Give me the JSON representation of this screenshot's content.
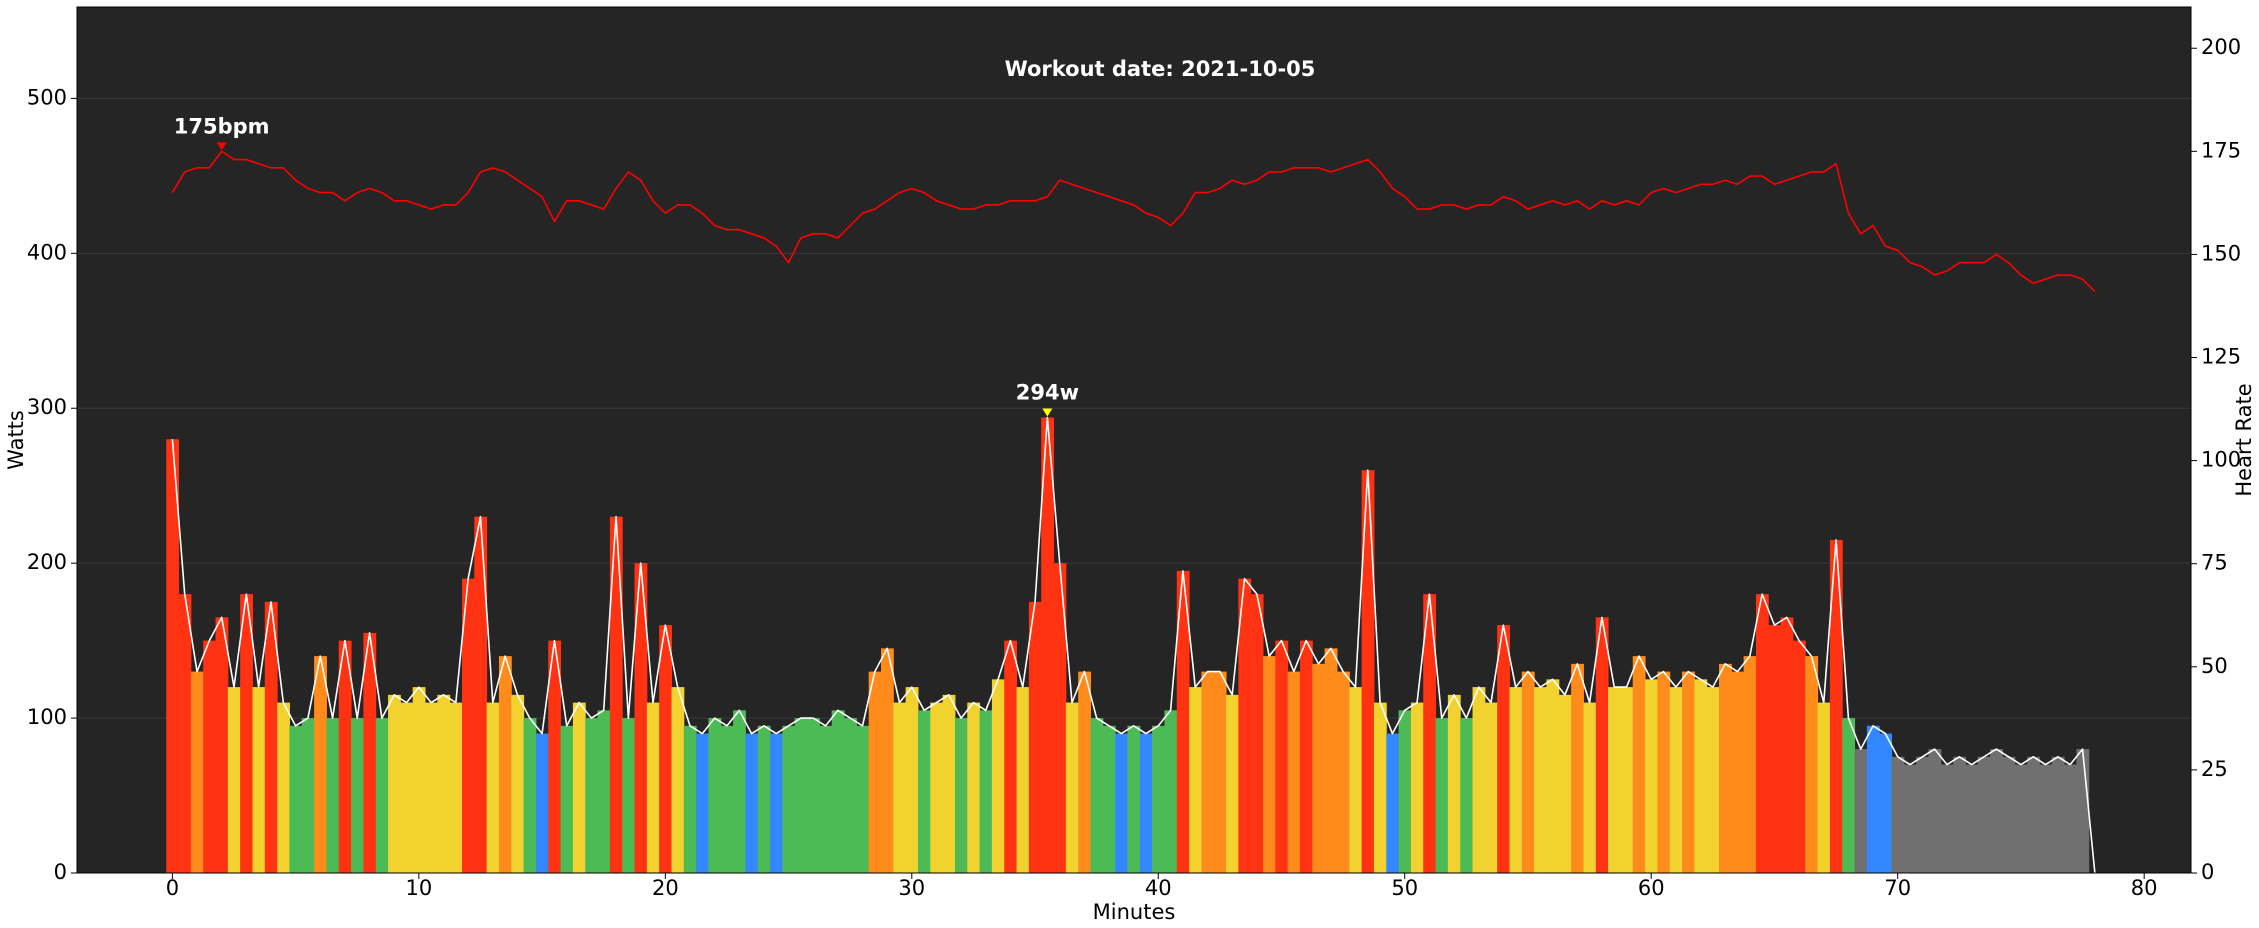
{
  "chart_data": {
    "type": "bar_line",
    "title": "Workout date: 2021-10-05",
    "x_label": "Minutes",
    "y_label": "Watts",
    "y2_label": "Heart Rate",
    "xlim": [
      -3.87,
      81.9
    ],
    "xticks": [
      0,
      10,
      20,
      30,
      40,
      50,
      60,
      70,
      80
    ],
    "ylim": [
      0,
      559
    ],
    "yticks": [
      0,
      100,
      200,
      300,
      400,
      500
    ],
    "y2lim": [
      0,
      210
    ],
    "y2ticks": [
      0,
      25,
      50,
      75,
      100,
      125,
      150,
      175,
      200
    ],
    "grid": true,
    "background": "#252525",
    "x": [
      0,
      0.5,
      1,
      1.5,
      2,
      2.5,
      3,
      3.5,
      4,
      4.5,
      5,
      5.5,
      6,
      6.5,
      7,
      7.5,
      8,
      8.5,
      9,
      9.5,
      10,
      10.5,
      11,
      11.5,
      12,
      12.5,
      13,
      13.5,
      14,
      14.5,
      15,
      15.5,
      16,
      16.5,
      17,
      17.5,
      18,
      18.5,
      19,
      19.5,
      20,
      20.5,
      21,
      21.5,
      22,
      22.5,
      23,
      23.5,
      24,
      24.5,
      25,
      25.5,
      26,
      26.5,
      27,
      27.5,
      28,
      28.5,
      29,
      29.5,
      30,
      30.5,
      31,
      31.5,
      32,
      32.5,
      33,
      33.5,
      34,
      34.5,
      35,
      35.5,
      36,
      36.5,
      37,
      37.5,
      38,
      38.5,
      39,
      39.5,
      40,
      40.5,
      41,
      41.5,
      42,
      42.5,
      43,
      43.5,
      44,
      44.5,
      45,
      45.5,
      46,
      46.5,
      47,
      47.5,
      48,
      48.5,
      49,
      49.5,
      50,
      50.5,
      51,
      51.5,
      52,
      52.5,
      53,
      53.5,
      54,
      54.5,
      55,
      55.5,
      56,
      56.5,
      57,
      57.5,
      58,
      58.5,
      59,
      59.5,
      60,
      60.5,
      61,
      61.5,
      62,
      62.5,
      63,
      63.5,
      64,
      64.5,
      65,
      65.5,
      66,
      66.5,
      67,
      67.5,
      68,
      68.5,
      69,
      69.5,
      70,
      70.5,
      71,
      71.5,
      72,
      72.5,
      73,
      73.5,
      74,
      74.5,
      75,
      75.5,
      76,
      76.5,
      77,
      77.5,
      78
    ],
    "series": [
      {
        "type": "bar",
        "line_color": "#ffffff",
        "values": [
          280,
          180,
          130,
          150,
          165,
          120,
          180,
          120,
          175,
          110,
          95,
          100,
          140,
          100,
          150,
          100,
          155,
          100,
          115,
          110,
          120,
          110,
          115,
          110,
          190,
          230,
          110,
          140,
          115,
          100,
          90,
          150,
          95,
          110,
          100,
          105,
          230,
          100,
          200,
          110,
          160,
          120,
          95,
          90,
          100,
          95,
          105,
          90,
          95,
          90,
          95,
          100,
          100,
          95,
          105,
          100,
          95,
          130,
          145,
          110,
          120,
          105,
          110,
          115,
          100,
          110,
          105,
          125,
          150,
          120,
          175,
          294,
          200,
          110,
          130,
          100,
          95,
          90,
          95,
          90,
          95,
          105,
          195,
          120,
          130,
          130,
          115,
          190,
          180,
          140,
          150,
          130,
          150,
          135,
          145,
          130,
          120,
          260,
          110,
          90,
          105,
          110,
          180,
          100,
          115,
          100,
          120,
          110,
          160,
          120,
          130,
          120,
          125,
          115,
          135,
          110,
          165,
          120,
          120,
          140,
          125,
          130,
          120,
          130,
          125,
          120,
          135,
          130,
          140,
          180,
          160,
          165,
          150,
          140,
          110,
          215,
          100,
          80,
          95,
          90,
          75,
          70,
          75,
          80,
          70,
          75,
          70,
          75,
          80,
          75,
          70,
          75,
          70,
          75,
          70,
          80,
          0
        ],
        "colors": [
          "#ff3311",
          "#ff3311",
          "#ff8c1a",
          "#ff3311",
          "#ff3311",
          "#f2d22e",
          "#ff3311",
          "#f2d22e",
          "#ff3311",
          "#f2d22e",
          "#4dbb55",
          "#4dbb55",
          "#ff8c1a",
          "#4dbb55",
          "#ff3311",
          "#4dbb55",
          "#ff3311",
          "#4dbb55",
          "#f2d22e",
          "#f2d22e",
          "#f2d22e",
          "#f2d22e",
          "#f2d22e",
          "#f2d22e",
          "#ff3311",
          "#ff3311",
          "#f2d22e",
          "#ff8c1a",
          "#f2d22e",
          "#4dbb55",
          "#3388ff",
          "#ff3311",
          "#4dbb55",
          "#f2d22e",
          "#4dbb55",
          "#4dbb55",
          "#ff3311",
          "#4dbb55",
          "#ff3311",
          "#f2d22e",
          "#ff3311",
          "#f2d22e",
          "#4dbb55",
          "#3388ff",
          "#4dbb55",
          "#4dbb55",
          "#4dbb55",
          "#3388ff",
          "#4dbb55",
          "#3388ff",
          "#4dbb55",
          "#4dbb55",
          "#4dbb55",
          "#4dbb55",
          "#4dbb55",
          "#4dbb55",
          "#4dbb55",
          "#ff8c1a",
          "#ff8c1a",
          "#f2d22e",
          "#f2d22e",
          "#4dbb55",
          "#f2d22e",
          "#f2d22e",
          "#4dbb55",
          "#f2d22e",
          "#4dbb55",
          "#f2d22e",
          "#ff3311",
          "#f2d22e",
          "#ff3311",
          "#ff3311",
          "#ff3311",
          "#f2d22e",
          "#ff8c1a",
          "#4dbb55",
          "#4dbb55",
          "#3388ff",
          "#4dbb55",
          "#3388ff",
          "#4dbb55",
          "#4dbb55",
          "#ff3311",
          "#f2d22e",
          "#ff8c1a",
          "#ff8c1a",
          "#f2d22e",
          "#ff3311",
          "#ff3311",
          "#ff8c1a",
          "#ff3311",
          "#ff8c1a",
          "#ff3311",
          "#ff8c1a",
          "#ff8c1a",
          "#ff8c1a",
          "#f2d22e",
          "#ff3311",
          "#f2d22e",
          "#3388ff",
          "#4dbb55",
          "#f2d22e",
          "#ff3311",
          "#4dbb55",
          "#f2d22e",
          "#4dbb55",
          "#f2d22e",
          "#f2d22e",
          "#ff3311",
          "#f2d22e",
          "#ff8c1a",
          "#f2d22e",
          "#f2d22e",
          "#f2d22e",
          "#ff8c1a",
          "#f2d22e",
          "#ff3311",
          "#f2d22e",
          "#f2d22e",
          "#ff8c1a",
          "#f2d22e",
          "#ff8c1a",
          "#f2d22e",
          "#ff8c1a",
          "#f2d22e",
          "#f2d22e",
          "#ff8c1a",
          "#ff8c1a",
          "#ff8c1a",
          "#ff3311",
          "#ff3311",
          "#ff3311",
          "#ff3311",
          "#ff8c1a",
          "#f2d22e",
          "#ff3311",
          "#4dbb55",
          "#707070",
          "#3388ff",
          "#3388ff",
          "#707070",
          "#707070",
          "#707070",
          "#707070",
          "#707070",
          "#707070",
          "#707070",
          "#707070",
          "#707070",
          "#707070",
          "#707070",
          "#707070",
          "#707070",
          "#707070",
          "#707070",
          "#707070",
          "#707070"
        ]
      },
      {
        "type": "line",
        "axis": "y2",
        "color": "#ff0000",
        "values": [
          165,
          170,
          171,
          171,
          175,
          173,
          173,
          172,
          171,
          171,
          168,
          166,
          165,
          165,
          163,
          165,
          166,
          165,
          163,
          163,
          162,
          161,
          162,
          162,
          165,
          170,
          171,
          170,
          168,
          166,
          164,
          158,
          163,
          163,
          162,
          161,
          166,
          170,
          168,
          163,
          160,
          162,
          162,
          160,
          157,
          156,
          156,
          155,
          154,
          152,
          148,
          154,
          155,
          155,
          154,
          157,
          160,
          161,
          163,
          165,
          166,
          165,
          163,
          162,
          161,
          161,
          162,
          162,
          163,
          163,
          163,
          164,
          168,
          167,
          166,
          165,
          164,
          163,
          162,
          160,
          159,
          157,
          160,
          165,
          165,
          166,
          168,
          167,
          168,
          170,
          170,
          171,
          171,
          171,
          170,
          171,
          172,
          173,
          170,
          166,
          164,
          161,
          161,
          162,
          162,
          161,
          162,
          162,
          164,
          163,
          161,
          162,
          163,
          162,
          163,
          161,
          163,
          162,
          163,
          162,
          165,
          166,
          165,
          166,
          167,
          167,
          168,
          167,
          169,
          169,
          167,
          168,
          169,
          170,
          170,
          172,
          160,
          155,
          157,
          152,
          151,
          148,
          147,
          145,
          146,
          148,
          148,
          148,
          150,
          148,
          145,
          143,
          144,
          145,
          145,
          144,
          141
        ]
      }
    ],
    "annotations": [
      {
        "text": "175bpm",
        "x": 2,
        "y": 175,
        "axis": "y2",
        "color": "#ff0000"
      },
      {
        "text": "294w",
        "x": 35.5,
        "y": 294,
        "axis": "y",
        "color": "#ffff00"
      }
    ]
  }
}
